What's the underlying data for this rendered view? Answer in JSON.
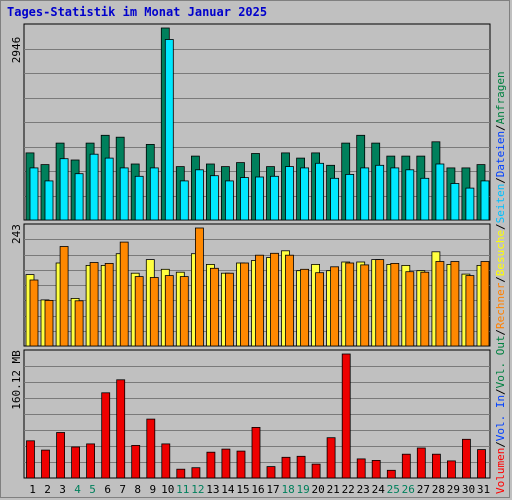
{
  "title": "Tages-Statistik im Monat Januar 2025",
  "y_labels": {
    "top": "2946",
    "middle": "243",
    "bottom": "160.12 MB"
  },
  "legend": [
    {
      "text": "Anfragen",
      "color": "#008040"
    },
    {
      "text": "Dateien",
      "color": "#0040ff"
    },
    {
      "text": "Seiten",
      "color": "#00c0ff"
    },
    {
      "text": "Besuche",
      "color": "#ffff00"
    },
    {
      "text": "Rechner",
      "color": "#ff8000"
    },
    {
      "text": "Vol. Out",
      "color": "#008040"
    },
    {
      "text": "Vol. In",
      "color": "#0040ff"
    },
    {
      "text": "Volumen",
      "color": "#ff0000"
    }
  ],
  "colors": {
    "background": "#c0c0c0",
    "hits": "#00805c",
    "pages": "#00e8ff",
    "visits": "#ffff40",
    "sites": "#ff8800",
    "volume": "#ee0000",
    "weekend_label": "#00805c",
    "title": "#0000cc"
  },
  "chart_data": [
    {
      "type": "bar",
      "title": "Tages-Statistik im Monat Januar 2025",
      "categories": [
        "1",
        "2",
        "3",
        "4",
        "5",
        "6",
        "7",
        "8",
        "9",
        "10",
        "11",
        "12",
        "13",
        "14",
        "15",
        "16",
        "17",
        "18",
        "19",
        "20",
        "21",
        "22",
        "23",
        "24",
        "25",
        "26",
        "27",
        "28",
        "29",
        "30",
        "31"
      ],
      "weekend_days": [
        "4",
        "5",
        "11",
        "12",
        "18",
        "19",
        "25",
        "26"
      ],
      "ylim": [
        0,
        2946
      ],
      "ytick": "2946",
      "series": [
        {
          "name": "Anfragen",
          "values": [
            1030,
            850,
            1180,
            920,
            1180,
            1300,
            1270,
            860,
            1160,
            2946,
            820,
            980,
            860,
            820,
            880,
            1020,
            820,
            1030,
            950,
            1030,
            840,
            1180,
            1300,
            1180,
            980,
            980,
            980,
            1200,
            800,
            800,
            850
          ]
        },
        {
          "name": "Seiten",
          "values": [
            800,
            600,
            940,
            710,
            1010,
            950,
            800,
            670,
            800,
            2770,
            600,
            770,
            680,
            600,
            650,
            660,
            670,
            820,
            800,
            870,
            640,
            700,
            800,
            840,
            800,
            770,
            640,
            860,
            560,
            490,
            600
          ]
        }
      ]
    },
    {
      "type": "bar",
      "ylim": [
        0,
        243
      ],
      "ytick": "243",
      "series": [
        {
          "name": "Besuche",
          "values": [
            147,
            95,
            171,
            98,
            166,
            166,
            190,
            150,
            178,
            158,
            152,
            190,
            168,
            150,
            171,
            176,
            182,
            196,
            155,
            168,
            155,
            173,
            173,
            178,
            168,
            166,
            155,
            194,
            168,
            148,
            166
          ]
        },
        {
          "name": "Rechner",
          "values": [
            136,
            94,
            205,
            93,
            172,
            170,
            214,
            143,
            141,
            145,
            143,
            243,
            160,
            150,
            171,
            187,
            191,
            187,
            158,
            151,
            163,
            171,
            167,
            178,
            170,
            153,
            152,
            174,
            174,
            145,
            174
          ]
        }
      ]
    },
    {
      "type": "bar",
      "ylim": [
        0,
        240
      ],
      "ytick": "160.12 MB",
      "series": [
        {
          "name": "Volumen",
          "values": [
            72,
            54,
            88,
            60,
            66,
            165,
            190,
            63,
            114,
            66,
            17,
            20,
            50,
            56,
            52,
            98,
            22,
            40,
            42,
            27,
            78,
            240,
            37,
            34,
            15,
            46,
            58,
            46,
            33,
            75,
            55
          ]
        }
      ]
    }
  ]
}
